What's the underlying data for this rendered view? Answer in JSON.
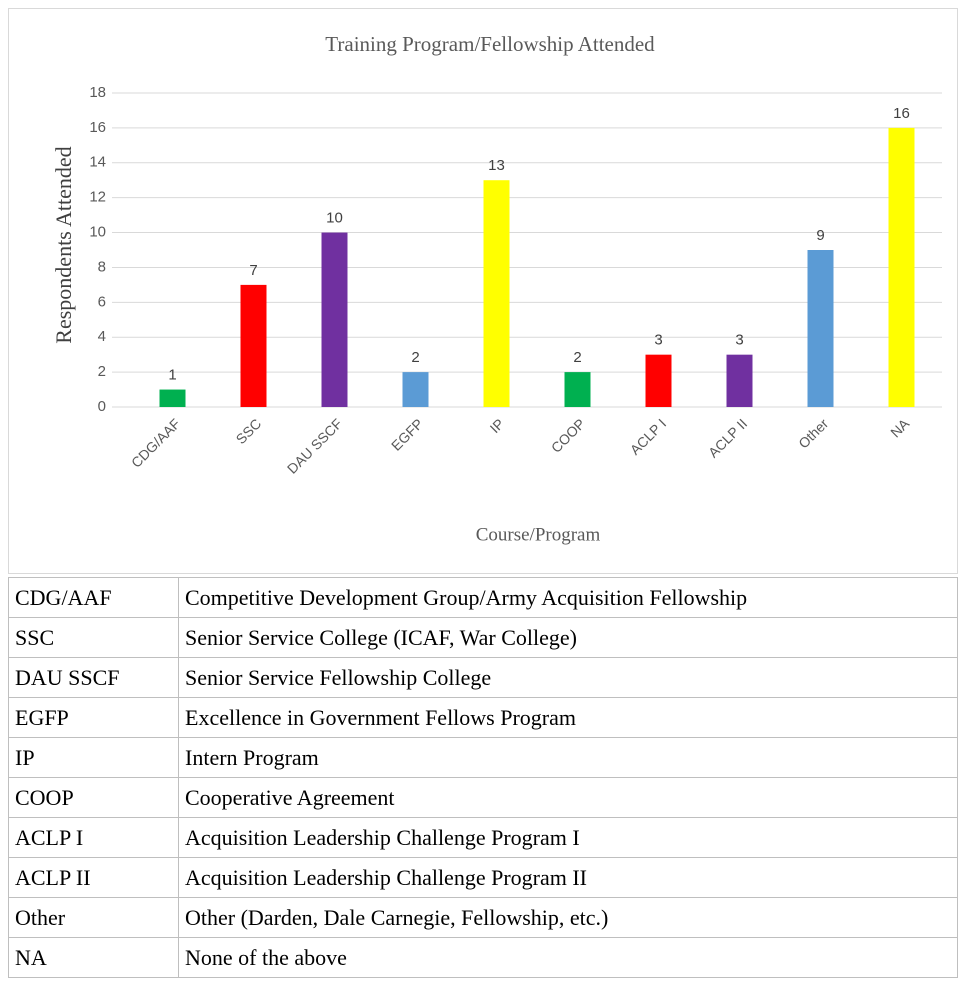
{
  "chart_data": {
    "type": "bar",
    "title": "Training Program/Fellowship Attended",
    "y_label": "Respondents Attended",
    "x_label": "Course/Program",
    "categories": [
      "CDG/AAF",
      "SSC",
      "DAU SSCF",
      "EGFP",
      "IP",
      "COOP",
      "ACLP I",
      "ACLP II",
      "Other",
      "NA"
    ],
    "values": [
      1,
      7,
      10,
      2,
      13,
      2,
      3,
      3,
      9,
      16
    ],
    "colors": [
      "#00b050",
      "#ff0000",
      "#7030a0",
      "#5b9bd5",
      "#ffff00",
      "#00b050",
      "#ff0000",
      "#7030a0",
      "#5b9bd5",
      "#ffff00"
    ],
    "ylim": [
      0,
      18
    ],
    "yticks": [
      0,
      2,
      4,
      6,
      8,
      10,
      12,
      14,
      16,
      18
    ],
    "grid": true
  },
  "table": {
    "rows": [
      [
        "CDG/AAF",
        "Competitive Development Group/Army Acquisition Fellowship"
      ],
      [
        "SSC",
        "Senior Service College (ICAF, War College)"
      ],
      [
        "DAU SSCF",
        "Senior Service Fellowship College"
      ],
      [
        "EGFP",
        "Excellence in Government Fellows Program"
      ],
      [
        "IP",
        "Intern Program"
      ],
      [
        "COOP",
        "Cooperative Agreement"
      ],
      [
        "ACLP I",
        "Acquisition Leadership Challenge Program I"
      ],
      [
        "ACLP II",
        "Acquisition Leadership Challenge Program II"
      ],
      [
        "Other",
        "Other (Darden, Dale Carnegie, Fellowship, etc.)"
      ],
      [
        "NA",
        "None of the above"
      ]
    ]
  }
}
